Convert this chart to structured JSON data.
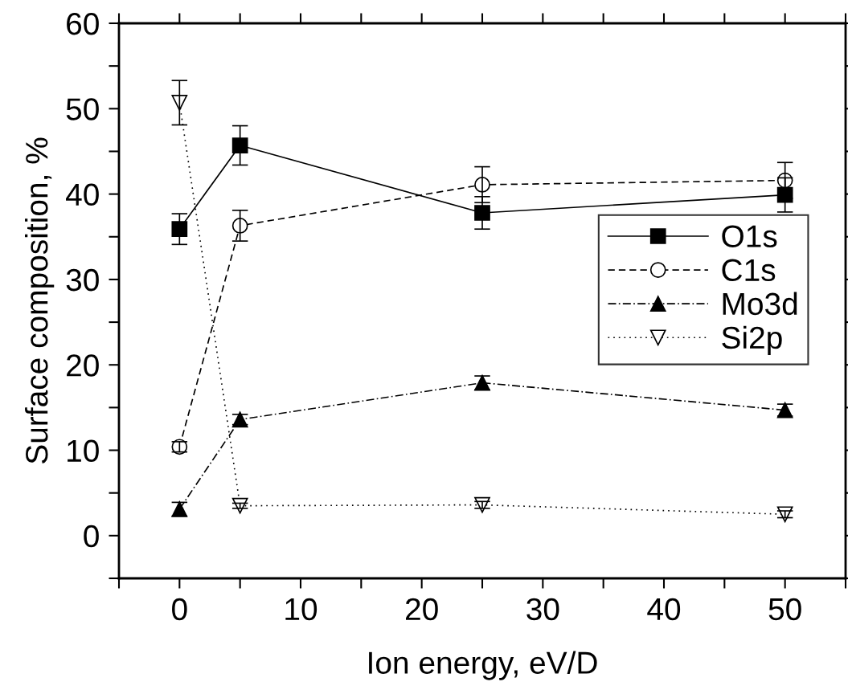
{
  "chart_data": {
    "type": "line",
    "xlabel": "Ion energy, eV/D",
    "ylabel": "Surface composition, %",
    "x": [
      0,
      5,
      25,
      50
    ],
    "xlim": [
      -5,
      55
    ],
    "xticks": [
      {
        "value": -5,
        "label": null
      },
      0,
      {
        "value": 5,
        "label": null
      },
      10,
      {
        "value": 15,
        "label": null
      },
      20,
      {
        "value": 25,
        "label": null
      },
      30,
      {
        "value": 35,
        "label": null
      },
      40,
      {
        "value": 45,
        "label": null
      },
      50,
      {
        "value": 55,
        "label": null
      }
    ],
    "ylim": [
      -5,
      60
    ],
    "yticks": [
      {
        "value": -5,
        "label": null
      },
      0,
      {
        "value": 5,
        "label": null
      },
      10,
      {
        "value": 15,
        "label": null
      },
      20,
      {
        "value": 25,
        "label": null
      },
      30,
      {
        "value": 35,
        "label": null
      },
      40,
      {
        "value": 45,
        "label": null
      },
      50,
      {
        "value": 55,
        "label": null
      },
      60
    ],
    "grid": false,
    "legend": "right",
    "series": [
      {
        "name": "O1s",
        "color": "#000000",
        "marker": "square",
        "line_style": "solid",
        "values": [
          35.9,
          45.7,
          37.8,
          39.9
        ],
        "errors": [
          1.8,
          2.3,
          1.9,
          2.0
        ]
      },
      {
        "name": "C1s",
        "color": "#000000",
        "marker": "circle-open",
        "line_style": "dashed",
        "values": [
          10.4,
          36.3,
          41.1,
          41.6
        ],
        "errors": [
          0.6,
          1.8,
          2.1,
          2.1
        ]
      },
      {
        "name": "Mo3d",
        "color": "#000000",
        "marker": "triangle",
        "line_style": "dashdot",
        "values": [
          3.1,
          13.6,
          17.9,
          14.7
        ],
        "errors": [
          0.8,
          0.6,
          0.8,
          0.7
        ]
      },
      {
        "name": "Si2p",
        "color": "#000000",
        "marker": "triangle-down-open",
        "line_style": "dotted",
        "values": [
          50.7,
          3.5,
          3.6,
          2.5
        ],
        "errors": [
          2.6,
          0.3,
          0.4,
          0.4
        ]
      }
    ]
  }
}
